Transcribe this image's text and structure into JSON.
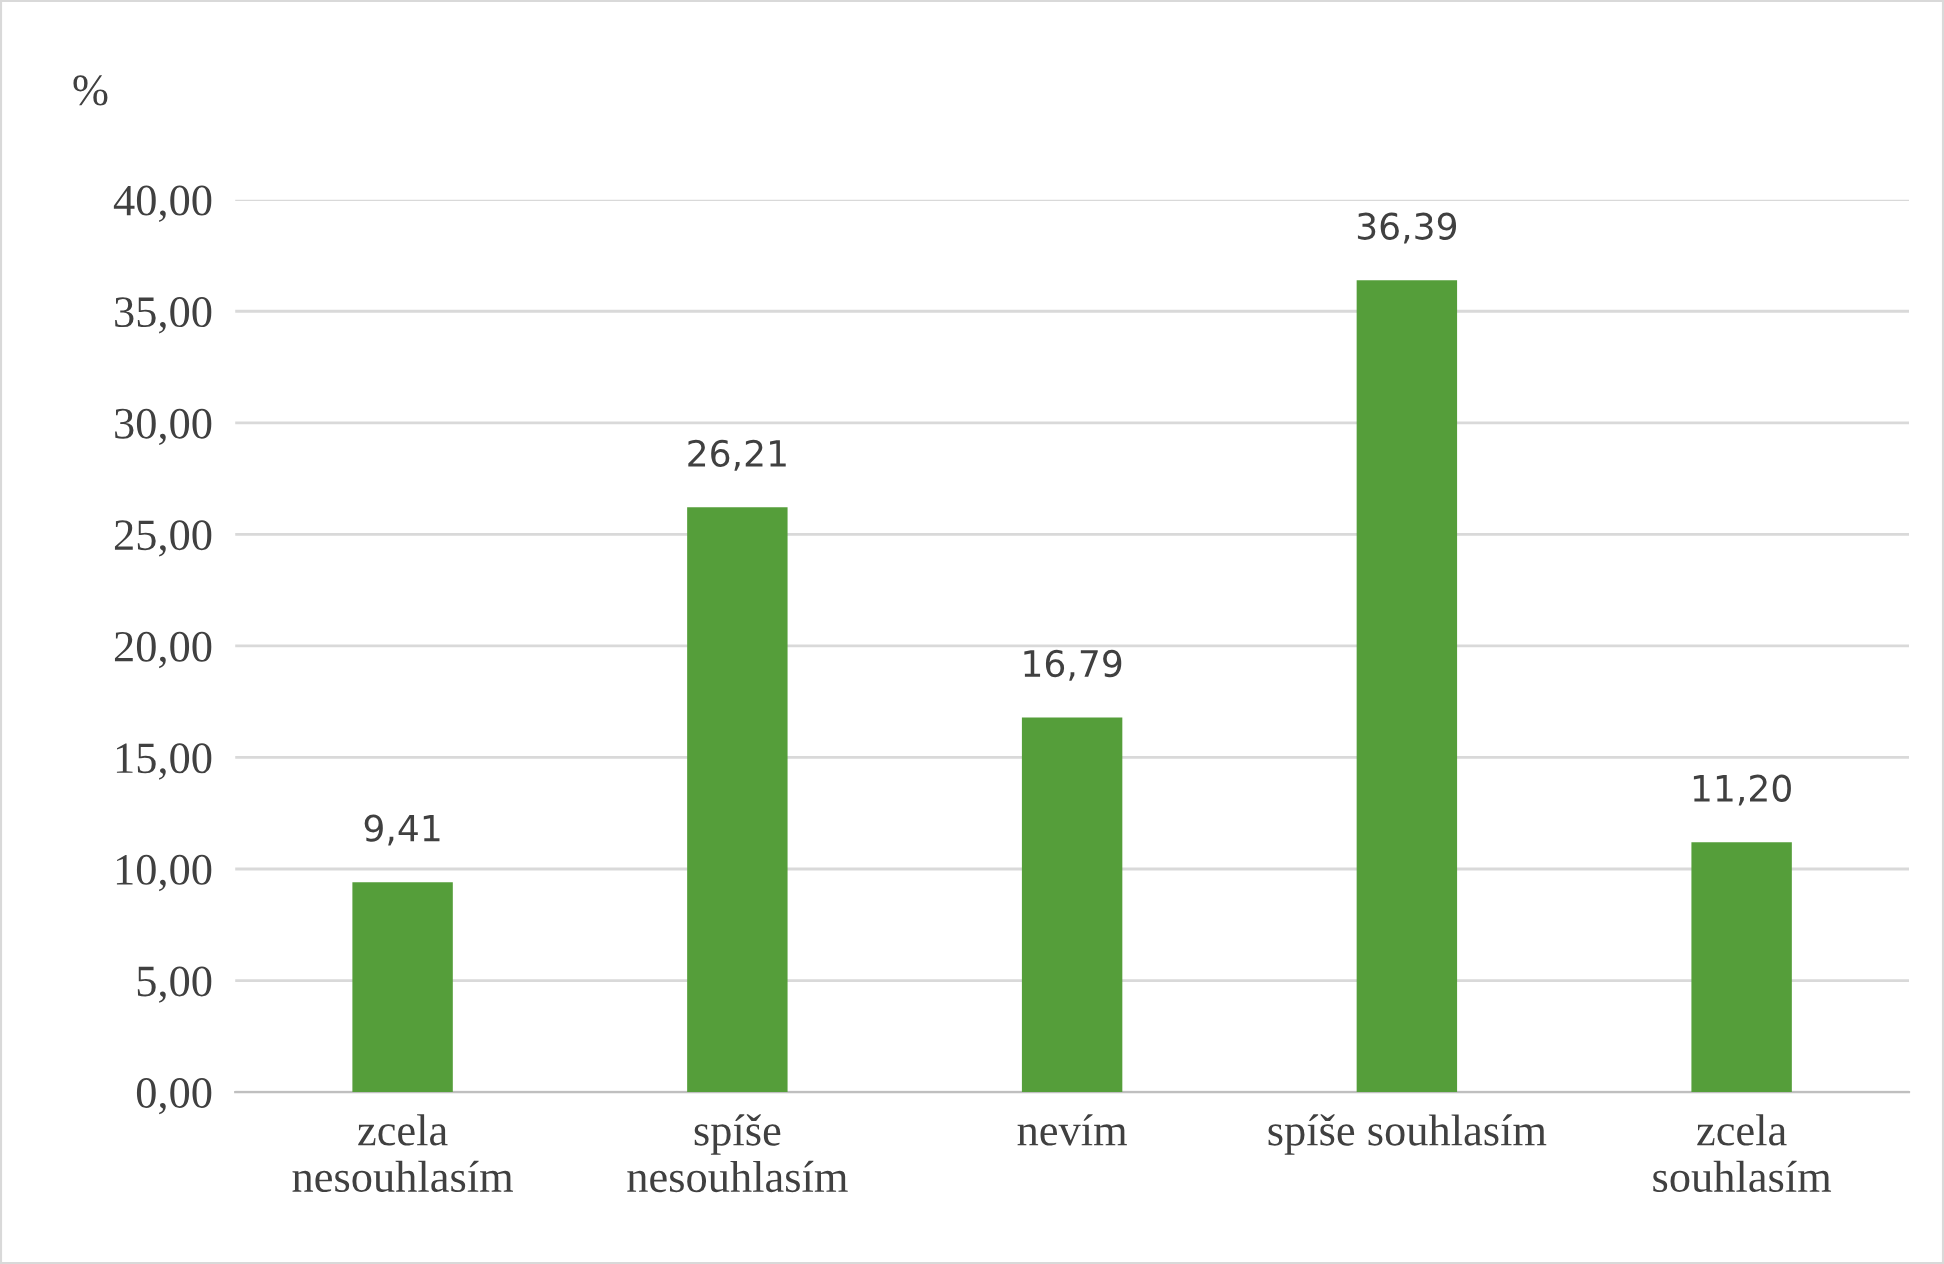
{
  "chart_data": {
    "type": "bar",
    "ylabel": "%",
    "categories": [
      "zcela\nnesouhlasím",
      "spíše\nnesouhlasím",
      "nevím",
      "spíše souhlasím",
      "zcela\nsouhlasím"
    ],
    "values": [
      9.41,
      26.21,
      16.79,
      36.39,
      11.2
    ],
    "value_labels": [
      "9,41",
      "26,21",
      "16,79",
      "36,39",
      "11,20"
    ],
    "color": "#559e3a",
    "ylim": [
      0,
      40
    ],
    "yticks": [
      {
        "value": 0,
        "label": "0,00"
      },
      {
        "value": 5,
        "label": "5,00"
      },
      {
        "value": 10,
        "label": "10,00"
      },
      {
        "value": 15,
        "label": "15,00"
      },
      {
        "value": 20,
        "label": "20,00"
      },
      {
        "value": 25,
        "label": "25,00"
      },
      {
        "value": 30,
        "label": "30,00"
      },
      {
        "value": 35,
        "label": "35,00"
      },
      {
        "value": 40,
        "label": "40,00"
      }
    ],
    "grid": "y",
    "legend": false
  }
}
